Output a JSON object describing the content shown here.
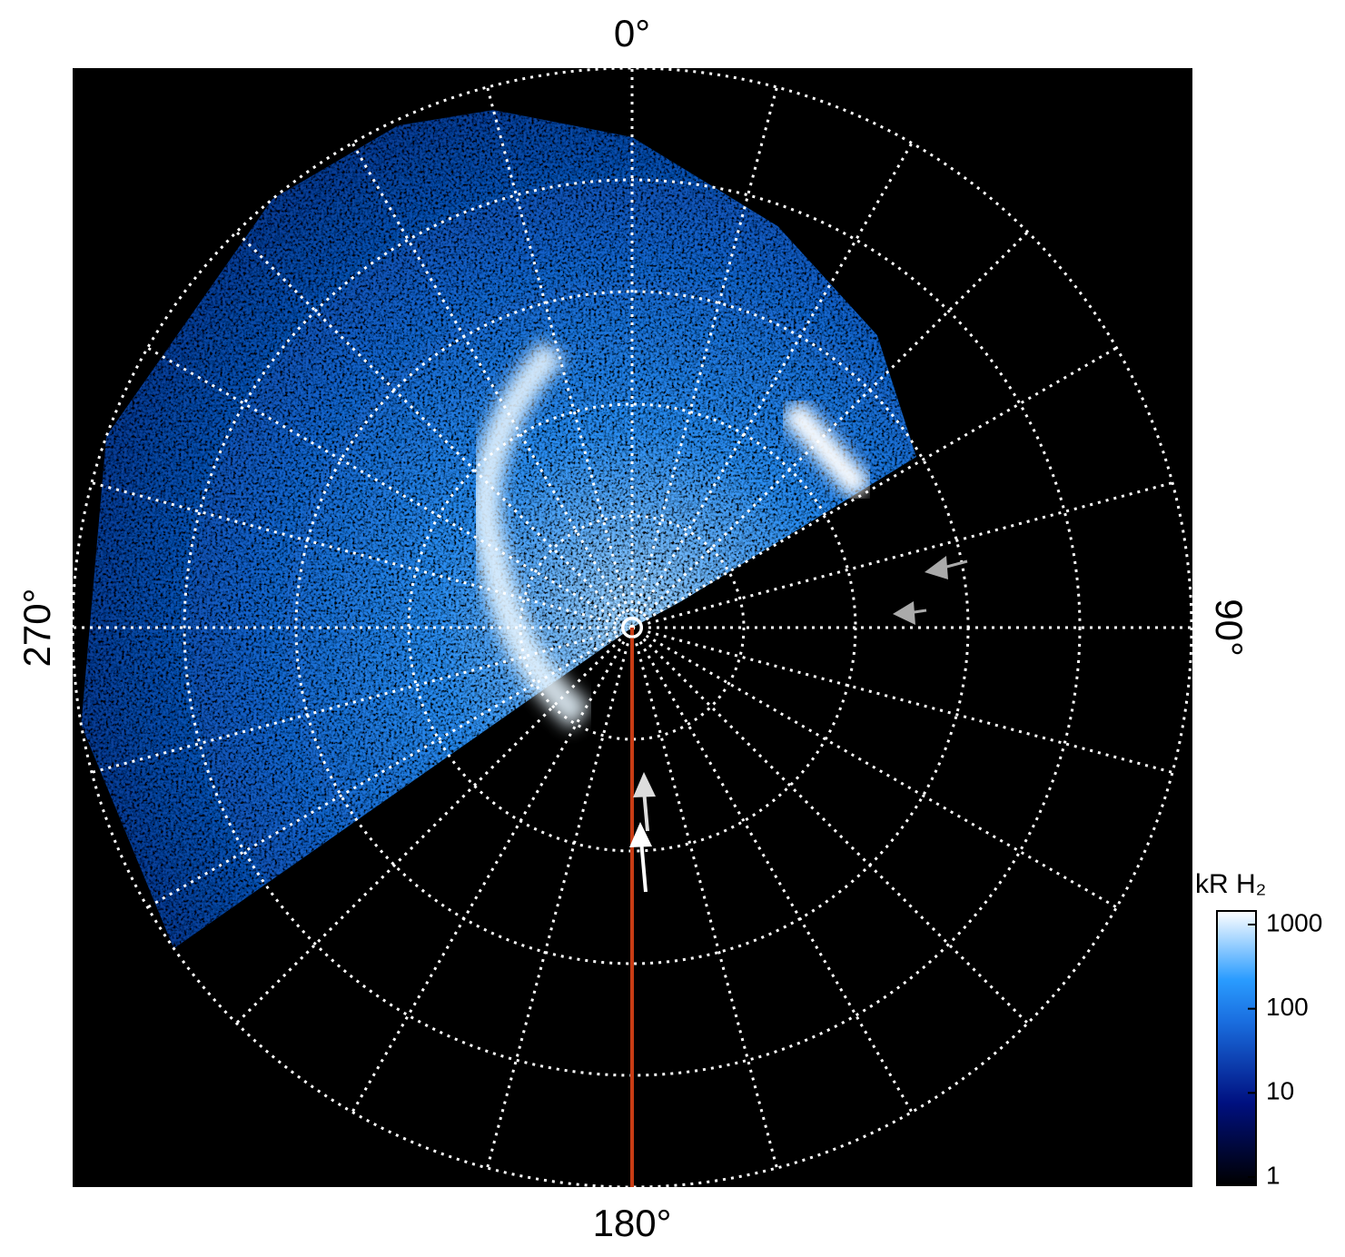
{
  "projection": {
    "labels": {
      "top": "0°",
      "right": "90°",
      "bottom": "180°",
      "left": "270°"
    },
    "colorbar": {
      "title": "kR H₂",
      "log": true,
      "lim": [
        0.8,
        1450
      ],
      "ticks": [
        1,
        10,
        100,
        1000
      ]
    }
  }
}
